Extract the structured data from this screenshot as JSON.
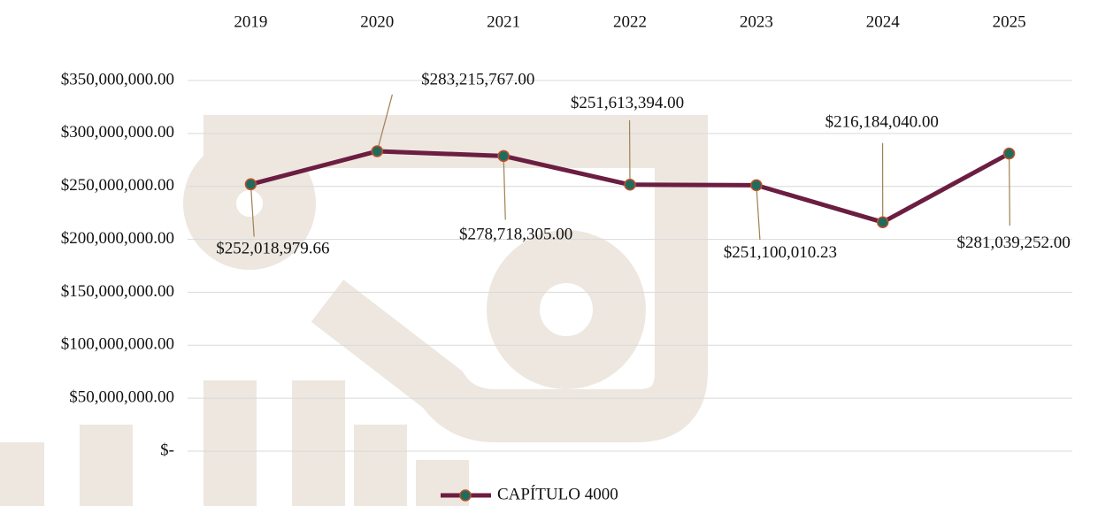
{
  "chart_data": {
    "type": "line",
    "categories": [
      "2019",
      "2020",
      "2021",
      "2022",
      "2023",
      "2024",
      "2025"
    ],
    "series": [
      {
        "name": "CAPÍTULO 4000",
        "color": "#6b1e41",
        "values": [
          252018979.66,
          283215767,
          278718305,
          251613394,
          251100010.23,
          216184040,
          281039252
        ],
        "value_labels": [
          "$252,018,979.66",
          "$283,215,767.00",
          "$278,718,305.00",
          "$251,613,394.00",
          "$251,100,010.23",
          "$216,184,040.00",
          "$281,039,252.00"
        ]
      }
    ],
    "ylim": [
      0,
      350000000
    ],
    "yticks": [
      {
        "value": 0,
        "label": "$-"
      },
      {
        "value": 50000000,
        "label": "$50,000,000.00"
      },
      {
        "value": 100000000,
        "label": "$100,000,000.00"
      },
      {
        "value": 150000000,
        "label": "$150,000,000.00"
      },
      {
        "value": 200000000,
        "label": "$200,000,000.00"
      },
      {
        "value": 250000000,
        "label": "$250,000,000.00"
      },
      {
        "value": 300000000,
        "label": "$300,000,000.00"
      },
      {
        "value": 350000000,
        "label": "$350,000,000.00"
      }
    ],
    "grid": true,
    "legend": "bottom"
  }
}
